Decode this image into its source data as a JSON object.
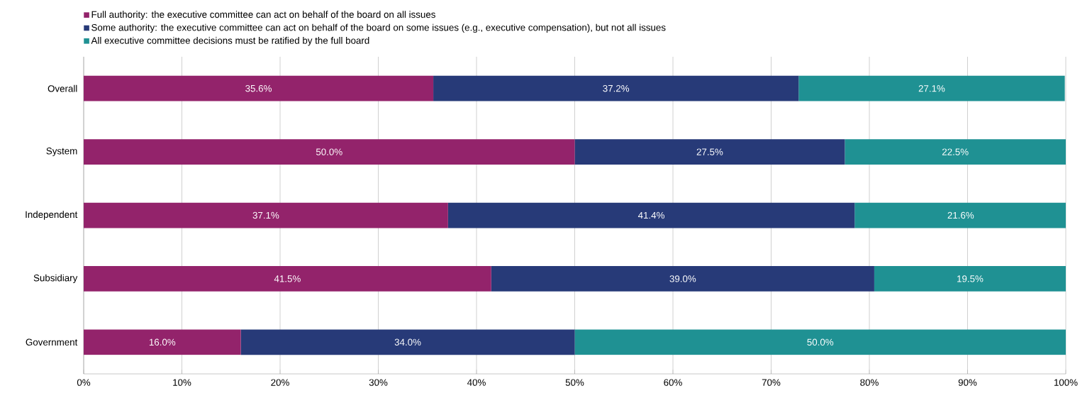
{
  "chart_data": {
    "type": "bar",
    "orientation": "horizontal",
    "stacked": true,
    "categories": [
      "Overall",
      "System",
      "Independent",
      "Subsidiary",
      "Government"
    ],
    "series": [
      {
        "name": "Full authority: the executive committee can act on behalf of the board on all issues",
        "color": "#93236b",
        "values": [
          35.6,
          50.0,
          37.1,
          41.5,
          16.0
        ],
        "value_labels": [
          "35.6%",
          "50.0%",
          "37.1%",
          "41.5%",
          "16.0%"
        ]
      },
      {
        "name": "Some authority: the executive committee can act on behalf of the board on some issues (e.g., executive compensation), but not all issues",
        "color": "#273a78",
        "values": [
          37.2,
          27.5,
          41.4,
          39.0,
          34.0
        ],
        "value_labels": [
          "37.2%",
          "27.5%",
          "41.4%",
          "39.0%",
          "34.0%"
        ]
      },
      {
        "name": "All executive committee decisions must be ratified by the full board",
        "color": "#1f9193",
        "values": [
          27.1,
          22.5,
          21.6,
          19.5,
          50.0
        ],
        "value_labels": [
          "27.1%",
          "22.5%",
          "21.6%",
          "19.5%",
          "50.0%"
        ]
      }
    ],
    "xlim": [
      0,
      100
    ],
    "xticks": [
      {
        "value": 0,
        "label": "0%"
      },
      {
        "value": 10,
        "label": "10%"
      },
      {
        "value": 20,
        "label": "20%"
      },
      {
        "value": 30,
        "label": "30%"
      },
      {
        "value": 40,
        "label": "40%"
      },
      {
        "value": 50,
        "label": "50%"
      },
      {
        "value": 60,
        "label": "60%"
      },
      {
        "value": 70,
        "label": "70%"
      },
      {
        "value": 80,
        "label": "80%"
      },
      {
        "value": 90,
        "label": "90%"
      },
      {
        "value": 100,
        "label": "100%"
      }
    ],
    "grid": "x",
    "legend": "top left"
  }
}
